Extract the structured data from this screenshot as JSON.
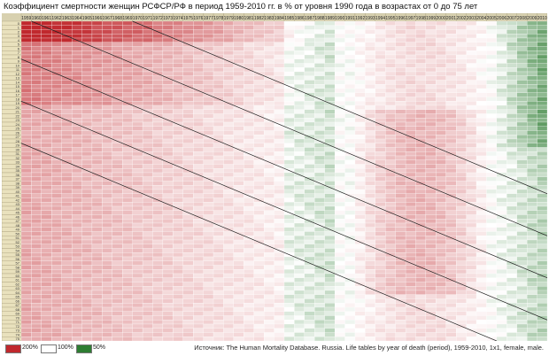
{
  "title": "Коэффициент смертности женщин РСФСР/РФ в период 1959-2010 гг. в % от уровня 1990 года в возрастах от 0 до 75 лет",
  "chart_data": {
    "type": "heatmap",
    "years": [
      1959,
      1960,
      1961,
      1962,
      1963,
      1964,
      1965,
      1966,
      1967,
      1968,
      1969,
      1970,
      1971,
      1972,
      1973,
      1974,
      1975,
      1976,
      1977,
      1978,
      1979,
      1980,
      1981,
      1982,
      1983,
      1984,
      1985,
      1986,
      1987,
      1988,
      1989,
      1990,
      1991,
      1992,
      1993,
      1994,
      1995,
      1996,
      1997,
      1998,
      1999,
      2000,
      2001,
      2002,
      2003,
      2004,
      2005,
      2006,
      2007,
      2008,
      2009,
      2010
    ],
    "ages": [
      0,
      1,
      2,
      3,
      4,
      5,
      6,
      7,
      8,
      9,
      10,
      11,
      12,
      13,
      14,
      15,
      16,
      17,
      18,
      19,
      20,
      21,
      22,
      23,
      24,
      25,
      26,
      27,
      28,
      29,
      30,
      31,
      32,
      33,
      34,
      35,
      36,
      37,
      38,
      39,
      40,
      41,
      42,
      43,
      44,
      45,
      46,
      47,
      48,
      49,
      50,
      51,
      52,
      53,
      54,
      55,
      56,
      57,
      58,
      59,
      60,
      61,
      62,
      63,
      64,
      65,
      66,
      67,
      68,
      69,
      70,
      71,
      72,
      73,
      74,
      75
    ],
    "unit": "% of 1990 level",
    "reference_year": 1990,
    "color_scale": [
      {
        "value": 200,
        "color": "#c0282d"
      },
      {
        "value": 100,
        "color": "#ffffff"
      },
      {
        "value": 50,
        "color": "#2e7d32"
      }
    ]
  },
  "legend": [
    {
      "label": "200%",
      "color": "#c0282d"
    },
    {
      "label": "100%",
      "color": "#ffffff"
    },
    {
      "label": "50%",
      "color": "#2e7d32"
    }
  ],
  "source": "Источник: The Human Mortality Database. Russia. Life tables by year of death (period), 1959-2010, 1x1, female, male."
}
